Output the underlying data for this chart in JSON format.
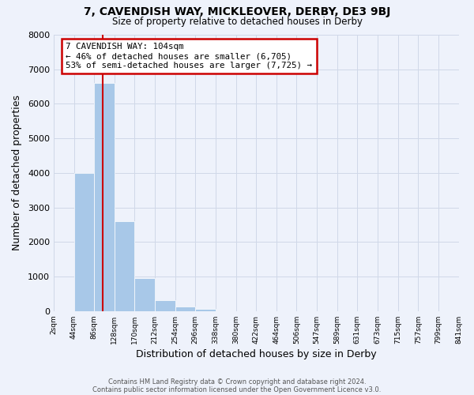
{
  "title1": "7, CAVENDISH WAY, MICKLEOVER, DERBY, DE3 9BJ",
  "title2": "Size of property relative to detached houses in Derby",
  "xlabel": "Distribution of detached houses by size in Derby",
  "ylabel": "Number of detached properties",
  "tick_labels": [
    "2sqm",
    "44sqm",
    "86sqm",
    "128sqm",
    "170sqm",
    "212sqm",
    "254sqm",
    "296sqm",
    "338sqm",
    "380sqm",
    "422sqm",
    "464sqm",
    "506sqm",
    "547sqm",
    "589sqm",
    "631sqm",
    "673sqm",
    "715sqm",
    "757sqm",
    "799sqm",
    "841sqm"
  ],
  "bin_counts": [
    0,
    4000,
    6600,
    2600,
    950,
    320,
    130,
    70,
    0,
    0,
    0,
    0,
    0,
    0,
    0,
    0,
    0,
    0,
    0,
    0
  ],
  "bar_color": "#a8c8e8",
  "vline_bin": 1.5,
  "vline_color": "#cc0000",
  "annotation_text": "7 CAVENDISH WAY: 104sqm\n← 46% of detached houses are smaller (6,705)\n53% of semi-detached houses are larger (7,725) →",
  "annotation_box_color": "#ffffff",
  "annotation_box_edge_color": "#cc0000",
  "ylim": [
    0,
    8000
  ],
  "yticks": [
    0,
    1000,
    2000,
    3000,
    4000,
    5000,
    6000,
    7000,
    8000
  ],
  "grid_color": "#d0d8e8",
  "bg_color": "#eef2fb",
  "footer1": "Contains HM Land Registry data © Crown copyright and database right 2024.",
  "footer2": "Contains public sector information licensed under the Open Government Licence v3.0."
}
